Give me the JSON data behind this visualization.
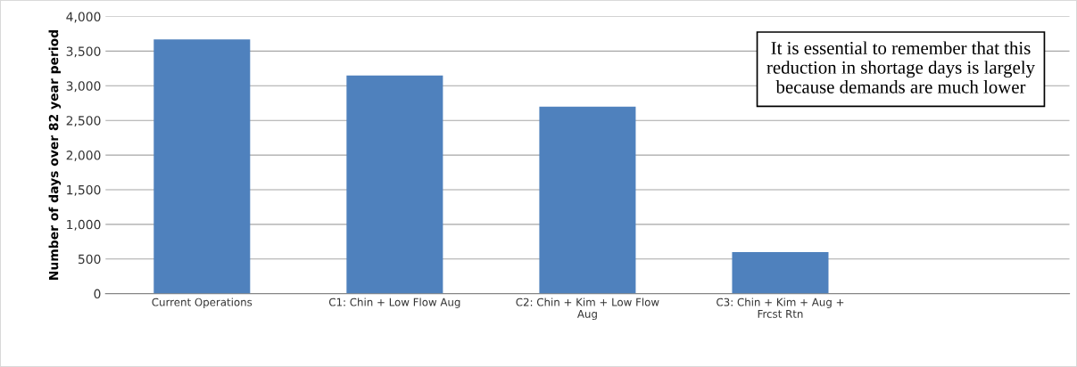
{
  "chart_data": {
    "type": "bar",
    "ylabel": "Number of days over 82 year period",
    "categories": [
      "Current Operations",
      "C1: Chin + Low Flow Aug",
      "C2: Chin + Kim + Low Flow Aug",
      "C3: Chin + Kim + Aug + Frcst Rtn",
      null
    ],
    "values": [
      3670,
      3150,
      2700,
      600,
      null
    ],
    "color": "#4f81bd",
    "ylim": [
      0,
      4000
    ],
    "yticks": [
      {
        "value": 0,
        "label": "0"
      },
      {
        "value": 500,
        "label": "500"
      },
      {
        "value": 1000,
        "label": "1,000"
      },
      {
        "value": 1500,
        "label": "1,500"
      },
      {
        "value": 2000,
        "label": "2,000"
      },
      {
        "value": 2500,
        "label": "2,500"
      },
      {
        "value": 3000,
        "label": "3,000"
      },
      {
        "value": 3500,
        "label": "3,500"
      },
      {
        "value": 4000,
        "label": "4,000"
      }
    ],
    "grid": "y",
    "legend": false,
    "annotations": [
      "It is essential to remember that this reduction in shortage days is largely because demands are much lower"
    ]
  }
}
